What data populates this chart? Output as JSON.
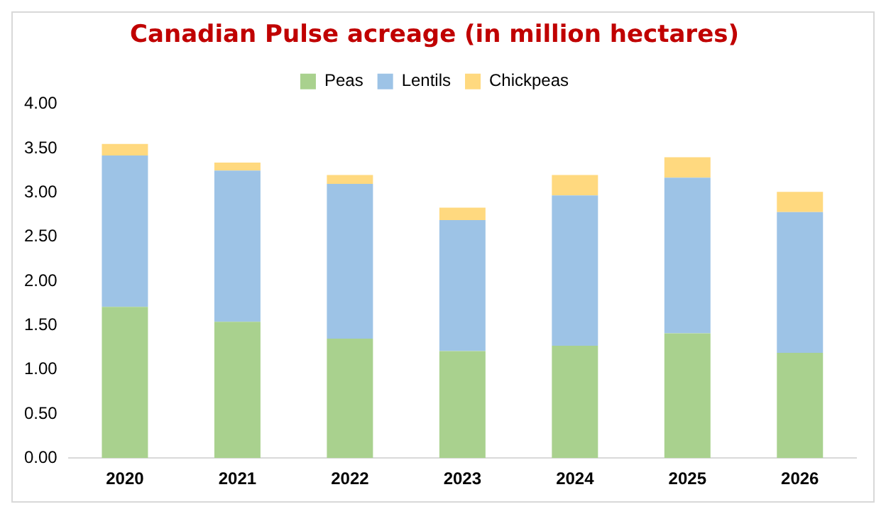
{
  "chart_data": {
    "type": "bar",
    "title": "Canadian Pulse acreage (in million hectares)",
    "categories": [
      "2020",
      "2021",
      "2022",
      "2023",
      "2024",
      "2025",
      "2026"
    ],
    "stacked": true,
    "legend": "top",
    "grid": false,
    "ylim": [
      0,
      4
    ],
    "yticks": [
      {
        "value": 0,
        "label": "0.00"
      },
      {
        "value": 0.5,
        "label": "0.50"
      },
      {
        "value": 1,
        "label": "1.00"
      },
      {
        "value": 1.5,
        "label": "1.50"
      },
      {
        "value": 2,
        "label": "2.00"
      },
      {
        "value": 2.5,
        "label": "2.50"
      },
      {
        "value": 3,
        "label": "3.00"
      },
      {
        "value": 3.5,
        "label": "3.50"
      },
      {
        "value": 4,
        "label": "4.00"
      }
    ],
    "series": [
      {
        "name": "Peas",
        "color": "#a9d18e",
        "values": [
          1.71,
          1.54,
          1.35,
          1.21,
          1.27,
          1.41,
          1.19
        ]
      },
      {
        "name": "Lentils",
        "color": "#9dc3e6",
        "values": [
          1.71,
          1.71,
          1.75,
          1.48,
          1.7,
          1.76,
          1.59
        ]
      },
      {
        "name": "Chickpeas",
        "color": "#ffd97f",
        "values": [
          0.13,
          0.09,
          0.1,
          0.14,
          0.23,
          0.23,
          0.23
        ]
      }
    ]
  }
}
